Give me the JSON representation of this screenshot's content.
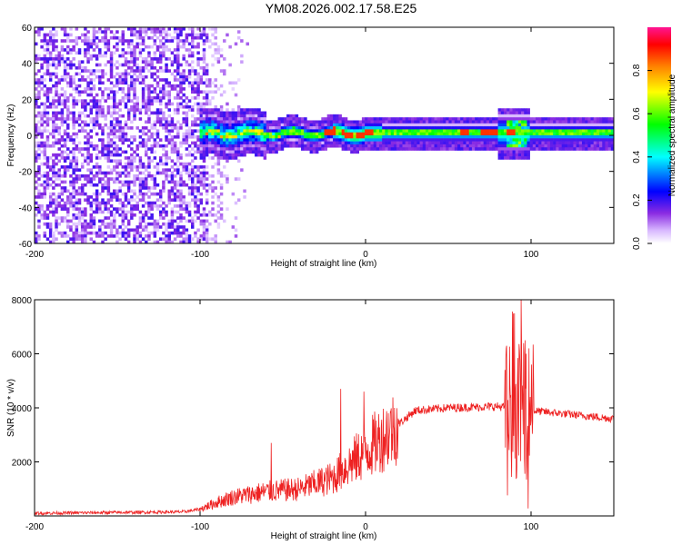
{
  "title": "YM08.2026.002.17.58.E25",
  "chart_data": [
    {
      "type": "heatmap",
      "name": "spectrogram",
      "xlabel": "Height of straight line (km)",
      "ylabel": "Frequency (Hz)",
      "xlim": [
        -200,
        150
      ],
      "ylim": [
        -60,
        60
      ],
      "xticks": [
        -200,
        -100,
        0,
        100
      ],
      "yticks": [
        -60,
        -40,
        -20,
        0,
        20,
        40,
        60
      ],
      "colorbar": {
        "label": "Normalized spectral amplitude",
        "range": [
          0.0,
          1.0
        ],
        "ticks": [
          0.0,
          0.2,
          0.4,
          0.6,
          0.8
        ],
        "colors": [
          "#ffffff",
          "#c8a0ff",
          "#8a2be2",
          "#0000ff",
          "#00ffff",
          "#00ff00",
          "#ffff00",
          "#ff8000",
          "#ff0000",
          "#ff1493"
        ]
      },
      "features": {
        "noise_region_x": [
          -200,
          -90
        ],
        "signal_band_x": [
          -100,
          150
        ],
        "signal_center_hz": 1,
        "burst_x": 92
      }
    },
    {
      "type": "line",
      "name": "snr",
      "xlabel": "Height of straight line (km)",
      "ylabel": "SNR (10 * v/v)",
      "xlim": [
        -200,
        150
      ],
      "ylim": [
        0,
        8000
      ],
      "xticks": [
        -200,
        -100,
        0,
        100
      ],
      "yticks": [
        2000,
        4000,
        6000,
        8000
      ],
      "color": "#ee2222",
      "trend": {
        "x": [
          -200,
          -110,
          -100,
          -90,
          -80,
          -60,
          -40,
          -20,
          0,
          20,
          30,
          50,
          80,
          90,
          100,
          150
        ],
        "y": [
          100,
          150,
          250,
          500,
          700,
          900,
          1000,
          1400,
          2400,
          3400,
          3900,
          4000,
          4050,
          4000,
          3900,
          3600
        ]
      },
      "spikes": [
        {
          "x": -57,
          "y": 2700
        },
        {
          "x": -15,
          "y": 4700
        },
        {
          "x": -1,
          "y": 4600
        },
        {
          "x": 85,
          "y": 6200
        },
        {
          "x": 90,
          "y": 7500
        },
        {
          "x": 94,
          "y": 8000
        },
        {
          "x": 97,
          "y": 6000
        }
      ]
    }
  ]
}
